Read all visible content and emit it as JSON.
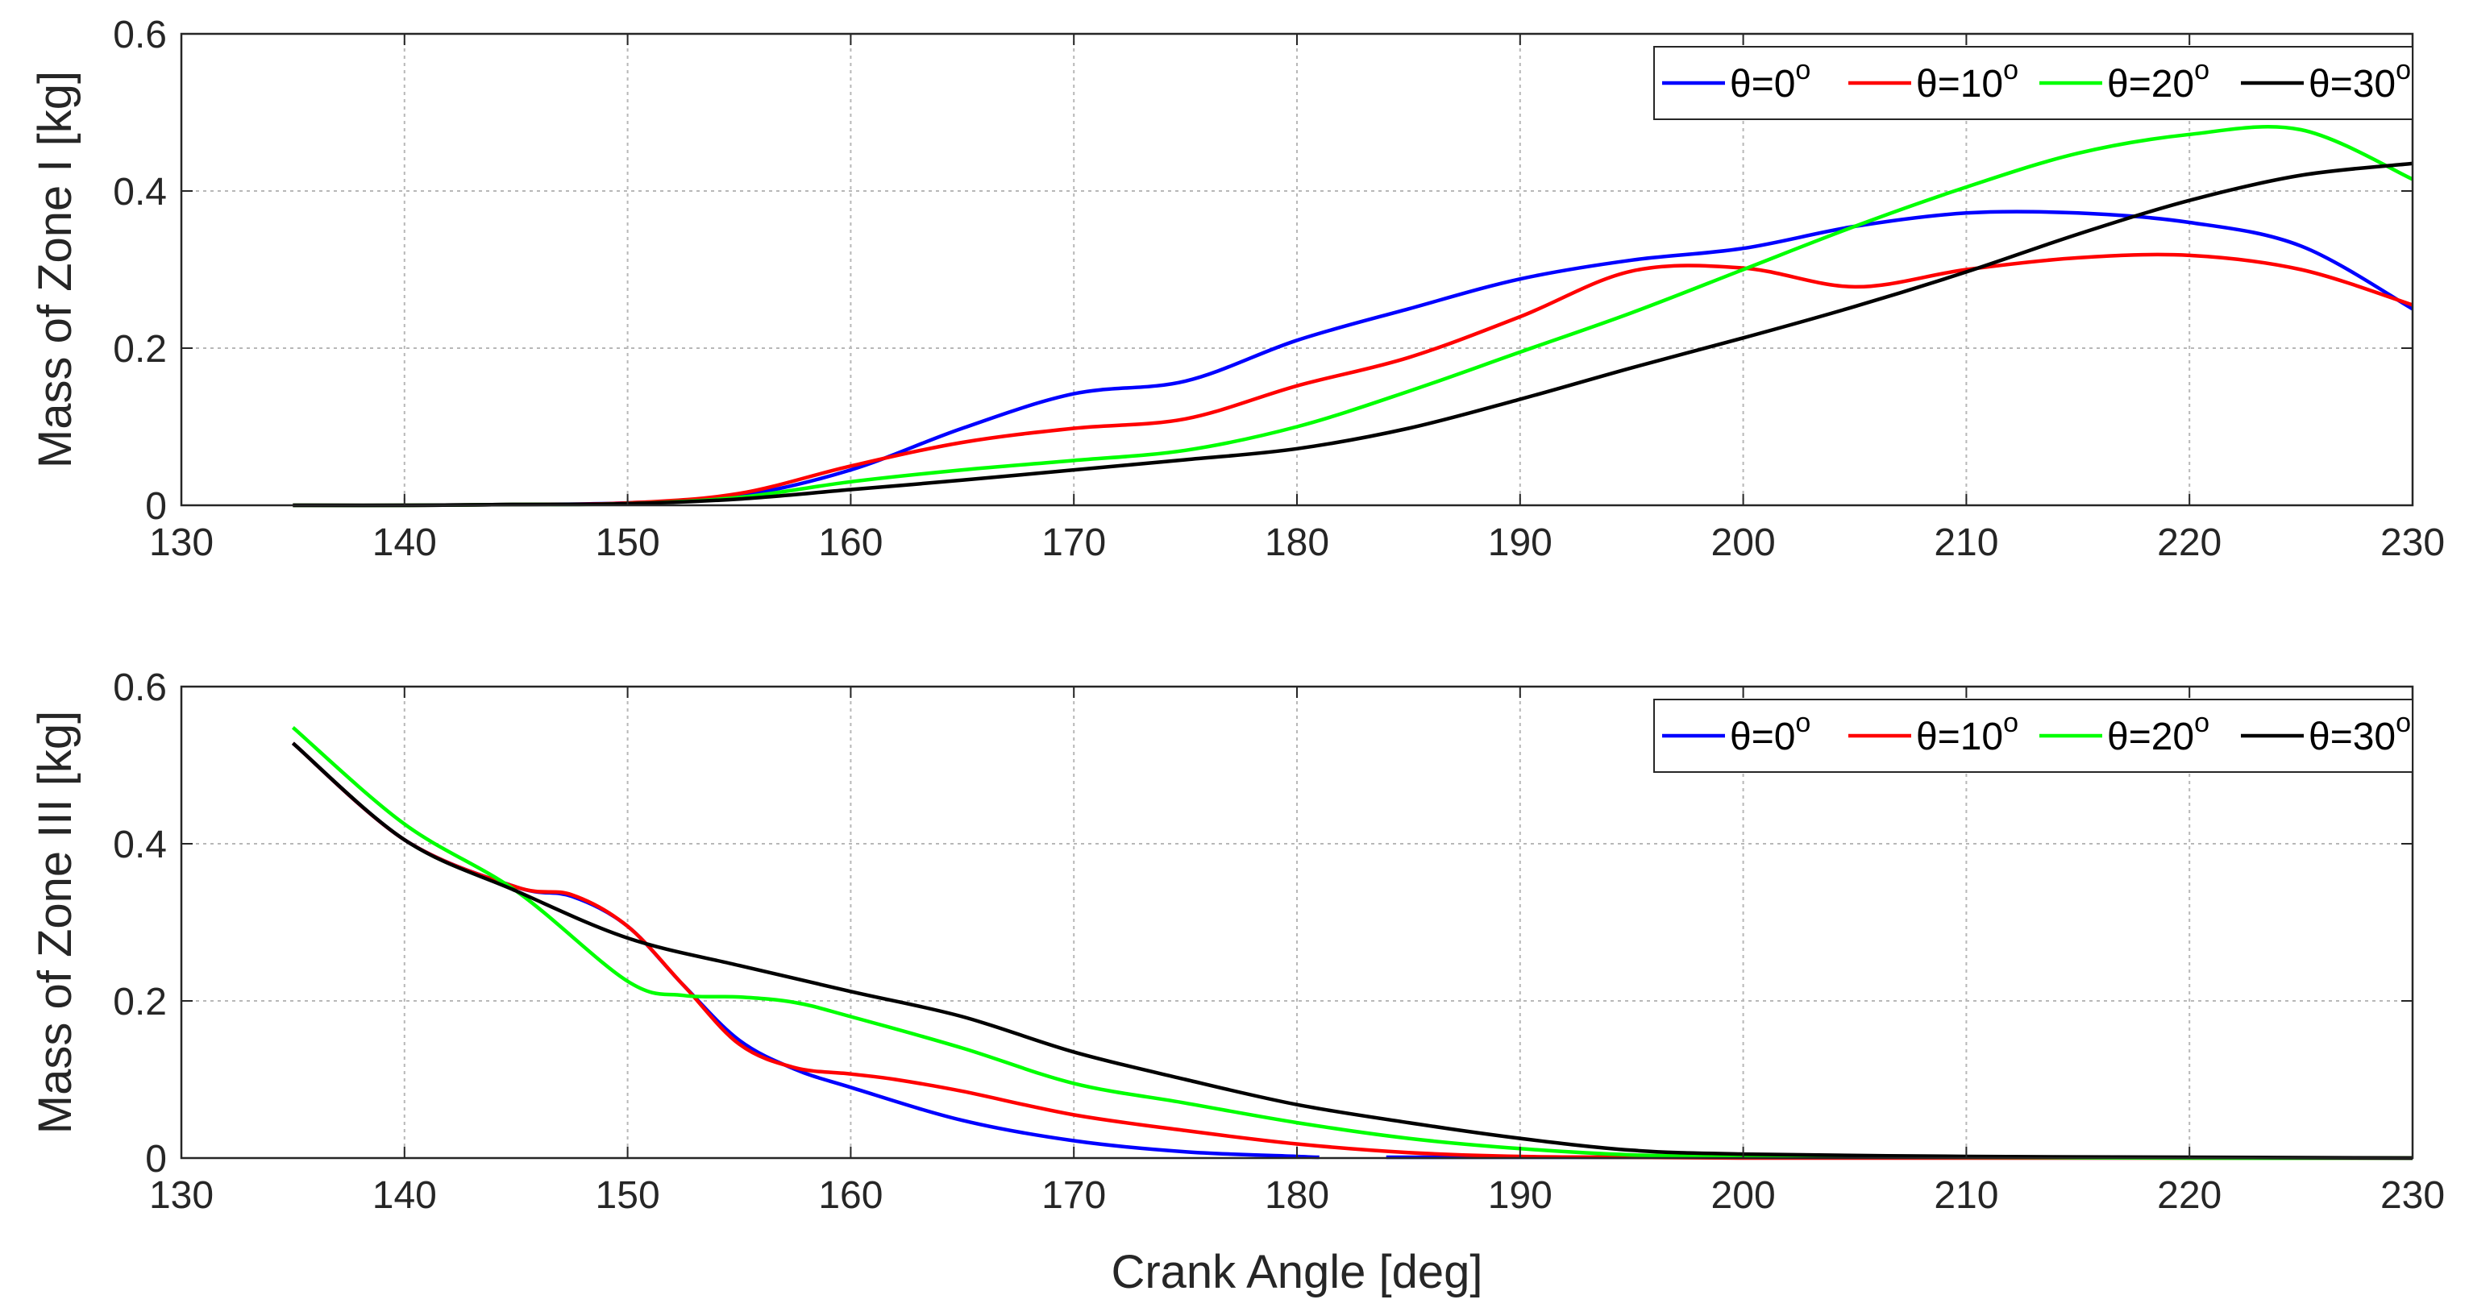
{
  "chart_data": [
    {
      "type": "line",
      "title": "",
      "xlabel": "",
      "ylabel": "Mass of Zone I [kg]",
      "xlim": [
        130,
        230
      ],
      "ylim": [
        0,
        0.6
      ],
      "xticks": [
        "130",
        "140",
        "150",
        "160",
        "170",
        "180",
        "190",
        "200",
        "210",
        "220",
        "230"
      ],
      "yticks": [
        "0",
        "0.2",
        "0.4",
        "0.6"
      ],
      "grid": true,
      "legend_position": "top-right",
      "series": [
        {
          "name": "θ=0",
          "sup": "o",
          "color": "#0000ff",
          "x": [
            135,
            140,
            145,
            150,
            155,
            160,
            165,
            170,
            175,
            180,
            185,
            190,
            195,
            200,
            205,
            210,
            215,
            220,
            225,
            230
          ],
          "y": [
            0,
            0,
            0.001,
            0.003,
            0.012,
            0.045,
            0.098,
            0.142,
            0.158,
            0.21,
            0.25,
            0.288,
            0.312,
            0.327,
            0.355,
            0.372,
            0.372,
            0.36,
            0.33,
            0.25
          ]
        },
        {
          "name": "θ=10",
          "sup": "o",
          "color": "#ff0000",
          "x": [
            135,
            140,
            145,
            150,
            155,
            160,
            165,
            170,
            175,
            180,
            185,
            190,
            195,
            200,
            205,
            210,
            215,
            220,
            225,
            230
          ],
          "y": [
            0,
            0,
            0.001,
            0.003,
            0.015,
            0.05,
            0.08,
            0.098,
            0.11,
            0.152,
            0.188,
            0.24,
            0.298,
            0.302,
            0.278,
            0.3,
            0.315,
            0.318,
            0.3,
            0.255
          ]
        },
        {
          "name": "θ=20",
          "sup": "o",
          "color": "#00ff00",
          "x": [
            135,
            140,
            145,
            150,
            155,
            160,
            165,
            170,
            175,
            180,
            185,
            190,
            195,
            200,
            205,
            210,
            215,
            220,
            225,
            230
          ],
          "y": [
            0,
            0,
            0.001,
            0.002,
            0.01,
            0.03,
            0.045,
            0.057,
            0.07,
            0.1,
            0.145,
            0.195,
            0.245,
            0.3,
            0.355,
            0.405,
            0.448,
            0.472,
            0.478,
            0.415
          ]
        },
        {
          "name": "θ=30",
          "sup": "o",
          "color": "#000000",
          "x": [
            135,
            140,
            145,
            150,
            155,
            160,
            165,
            170,
            175,
            180,
            185,
            190,
            195,
            200,
            205,
            210,
            215,
            220,
            225,
            230
          ],
          "y": [
            0,
            0,
            0.001,
            0.002,
            0.008,
            0.02,
            0.032,
            0.045,
            0.058,
            0.072,
            0.098,
            0.135,
            0.175,
            0.213,
            0.253,
            0.297,
            0.345,
            0.388,
            0.42,
            0.435
          ]
        }
      ]
    },
    {
      "type": "line",
      "title": "",
      "xlabel": "Crank Angle [deg]",
      "ylabel": "Mass of Zone III  [kg]",
      "xlim": [
        130,
        230
      ],
      "ylim": [
        0,
        0.6
      ],
      "xticks": [
        "130",
        "140",
        "150",
        "160",
        "170",
        "180",
        "190",
        "200",
        "210",
        "220",
        "230"
      ],
      "yticks": [
        "0",
        "0.2",
        "0.4",
        "0.6"
      ],
      "grid": true,
      "legend_position": "top-right",
      "series": [
        {
          "name": "θ=0",
          "sup": "o",
          "color": "#0000ff",
          "x": [
            135,
            140,
            145,
            147.5,
            150,
            152.5,
            155,
            157.5,
            160,
            165,
            170,
            175,
            180,
            181
          ],
          "y": [
            0.528,
            0.405,
            0.345,
            0.333,
            0.295,
            0.22,
            0.15,
            0.113,
            0.09,
            0.048,
            0.022,
            0.008,
            0.002,
            0.001
          ],
          "x2": [
            184,
            190,
            195,
            200,
            210,
            220,
            230
          ],
          "y2": [
            0.001,
            0.001,
            0.001,
            0.001,
            0.001,
            0.0005,
            0
          ]
        },
        {
          "name": "θ=10",
          "sup": "o",
          "color": "#ff0000",
          "x": [
            135,
            140,
            145,
            147.5,
            150,
            152.5,
            155,
            157.5,
            160,
            162,
            165,
            170,
            175,
            180,
            185,
            190,
            195,
            200,
            210,
            220,
            230
          ],
          "y": [
            0.528,
            0.405,
            0.345,
            0.335,
            0.295,
            0.22,
            0.145,
            0.115,
            0.107,
            0.1,
            0.085,
            0.055,
            0.035,
            0.018,
            0.007,
            0.002,
            0.001,
            0,
            0,
            0,
            0
          ]
        },
        {
          "name": "θ=20",
          "sup": "o",
          "color": "#00ff00",
          "x": [
            135,
            140,
            145,
            150,
            152.5,
            155,
            157.5,
            160,
            165,
            170,
            175,
            180,
            185,
            190,
            195,
            200,
            210,
            220,
            230
          ],
          "y": [
            0.548,
            0.425,
            0.34,
            0.225,
            0.207,
            0.205,
            0.198,
            0.18,
            0.14,
            0.095,
            0.07,
            0.045,
            0.025,
            0.012,
            0.004,
            0.002,
            0.001,
            0,
            0
          ]
        },
        {
          "name": "θ=30",
          "sup": "o",
          "color": "#000000",
          "x": [
            135,
            140,
            145,
            150,
            155,
            160,
            165,
            170,
            175,
            180,
            185,
            190,
            195,
            200,
            210,
            220,
            230
          ],
          "y": [
            0.528,
            0.405,
            0.34,
            0.28,
            0.245,
            0.212,
            0.18,
            0.135,
            0.1,
            0.068,
            0.045,
            0.025,
            0.01,
            0.005,
            0.002,
            0.001,
            0
          ]
        }
      ]
    }
  ]
}
